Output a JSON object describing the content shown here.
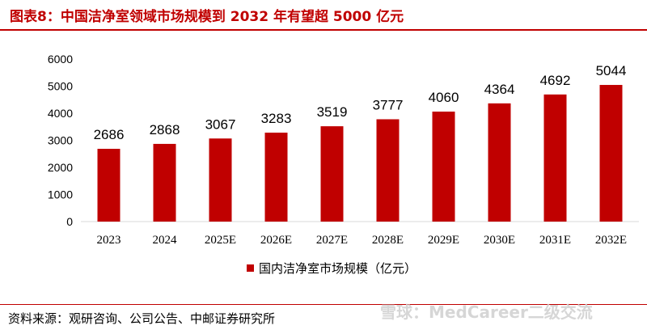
{
  "header": {
    "title": "图表8：中国洁净室领域市场规模到 2032 年有望超 5000 亿元"
  },
  "footer": {
    "source": "资料来源：观研咨询、公司公告、中邮证券研究所",
    "watermark": "雪球：MedCareer二级交流"
  },
  "colors": {
    "bar": "#c00000",
    "title": "#c00000",
    "axis": "#d9d9d9"
  },
  "chart_data": {
    "type": "bar",
    "categories": [
      "2023",
      "2024",
      "2025E",
      "2026E",
      "2027E",
      "2028E",
      "2029E",
      "2030E",
      "2031E",
      "2032E"
    ],
    "series": [
      {
        "name": "国内洁净室市场规模（亿元）",
        "values": [
          2686,
          2868,
          3067,
          3283,
          3519,
          3777,
          4060,
          4364,
          4692,
          5044
        ]
      }
    ],
    "yticks": [
      "0",
      "1000",
      "2000",
      "3000",
      "4000",
      "5000",
      "6000"
    ],
    "ylim": [
      0,
      6000
    ],
    "xlabel": "",
    "ylabel": "",
    "grid": false,
    "legend": "bottom-center",
    "data_labels": true
  }
}
